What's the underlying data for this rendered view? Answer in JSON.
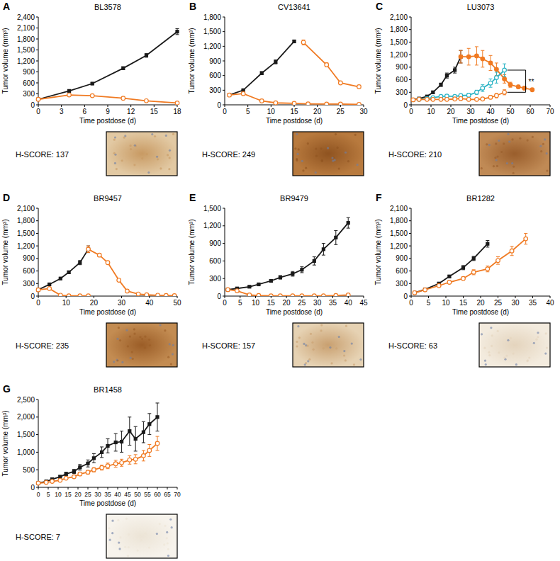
{
  "chart_data": [
    {
      "type": "line",
      "panel_label": "A",
      "title": "BL3578",
      "x_label": "Time postdose (d)",
      "y_label": "Tumor volume (mm³)",
      "xlim": [
        0,
        18
      ],
      "xticks": [
        0,
        3,
        6,
        9,
        12,
        15,
        18
      ],
      "ylim": [
        0,
        2400
      ],
      "yticks": [
        0,
        300,
        600,
        900,
        {
          "value": 1200,
          "label": "1,200"
        },
        {
          "value": 1500,
          "label": "1,500"
        },
        {
          "value": 1800,
          "label": "1,800"
        },
        {
          "value": 2100,
          "label": "2,100"
        },
        {
          "value": 2400,
          "label": "2,400"
        }
      ],
      "series": [
        {
          "color": "#1a1a1a",
          "marker": "square",
          "line_style": "solid",
          "x": [
            0,
            4,
            7,
            11,
            14,
            18
          ],
          "values": [
            150,
            380,
            580,
            1000,
            1350,
            2000
          ],
          "errors": [
            10,
            20,
            25,
            40,
            50,
            80
          ]
        },
        {
          "color": "#f07a22",
          "marker": "circle-open",
          "line_style": "solid",
          "x": [
            0,
            4,
            7,
            11,
            14,
            18
          ],
          "values": [
            150,
            270,
            250,
            180,
            110,
            50
          ],
          "errors": [
            10,
            15,
            15,
            15,
            10,
            10
          ]
        }
      ],
      "annotations": [
        {
          "text": "H-SCORE: 137"
        }
      ]
    },
    {
      "type": "line",
      "panel_label": "B",
      "title": "CV13641",
      "x_label": "Time postdose (d)",
      "y_label": "Tumor volume (mm³)",
      "xlim": [
        0,
        30
      ],
      "xticks": [
        0,
        5,
        10,
        15,
        20,
        25,
        30
      ],
      "ylim": [
        0,
        1800
      ],
      "yticks": [
        0,
        300,
        600,
        900,
        {
          "value": 1200,
          "label": "1,200"
        },
        {
          "value": 1500,
          "label": "1,500"
        },
        {
          "value": 1800,
          "label": "1,800"
        }
      ],
      "series": [
        {
          "color": "#1a1a1a",
          "marker": "square",
          "line_style": "solid",
          "x": [
            1,
            4,
            8,
            11,
            15
          ],
          "values": [
            200,
            300,
            650,
            880,
            1300
          ],
          "errors": [
            10,
            15,
            30,
            40,
            20
          ]
        },
        {
          "color": "#f07a22",
          "marker": "circle-open",
          "line_style": "solid",
          "x": [
            1,
            4,
            8,
            11,
            15,
            18,
            22,
            25,
            29
          ],
          "values": [
            200,
            230,
            80,
            40,
            30,
            20,
            15,
            15,
            10
          ],
          "errors": [
            10,
            15,
            10,
            5,
            5,
            5,
            5,
            5,
            5
          ]
        },
        {
          "color": "#f07a22",
          "marker": "circle-open",
          "line_style": "solid",
          "x": [
            17,
            22,
            25,
            29
          ],
          "values": [
            1280,
            820,
            450,
            370
          ],
          "errors": [
            50,
            40,
            30,
            25
          ]
        }
      ],
      "annotations": [
        {
          "text": "H-SCORE: 249"
        }
      ]
    },
    {
      "type": "line",
      "panel_label": "C",
      "title": "LU3073",
      "x_label": "Time postdose (d)",
      "y_label": "Tumor volume (mm³)",
      "xlim": [
        0,
        70
      ],
      "xticks": [
        0,
        10,
        20,
        30,
        40,
        50,
        60,
        70
      ],
      "ylim": [
        0,
        2100
      ],
      "yticks": [
        0,
        300,
        600,
        900,
        {
          "value": 1200,
          "label": "1,200"
        },
        {
          "value": 1500,
          "label": "1,500"
        },
        {
          "value": 1800,
          "label": "1,800"
        },
        {
          "value": 2100,
          "label": "2,100"
        }
      ],
      "series": [
        {
          "color": "#1a1a1a",
          "marker": "square",
          "line_style": "solid",
          "x": [
            1,
            4,
            8,
            11,
            15,
            18,
            22,
            25
          ],
          "values": [
            120,
            150,
            200,
            300,
            480,
            700,
            830,
            1150
          ],
          "errors": [
            10,
            10,
            20,
            30,
            40,
            60,
            70,
            150
          ]
        },
        {
          "color": "#f07a22",
          "marker": "circle",
          "line_style": "solid",
          "x": [
            25,
            29,
            33,
            36,
            40,
            43,
            47,
            50,
            54,
            57,
            61
          ],
          "values": [
            1150,
            1150,
            1170,
            1100,
            1000,
            850,
            620,
            480,
            430,
            400,
            360
          ],
          "errors": [
            150,
            200,
            220,
            200,
            180,
            150,
            100,
            60,
            40,
            30,
            30
          ]
        },
        {
          "color": "#2ab3c4",
          "marker": "circle-open",
          "line_style": "solid",
          "x": [
            4,
            8,
            11,
            15,
            18,
            22,
            25,
            29,
            33,
            36,
            40,
            43,
            47
          ],
          "values": [
            130,
            150,
            170,
            200,
            210,
            200,
            220,
            230,
            300,
            400,
            520,
            650,
            830
          ],
          "errors": [
            10,
            15,
            15,
            20,
            25,
            25,
            30,
            40,
            50,
            80,
            100,
            130,
            150
          ]
        },
        {
          "color": "#f07a22",
          "marker": "circle-open",
          "line_style": "solid",
          "x": [
            1,
            4,
            8,
            11,
            15,
            18,
            22,
            25,
            29,
            33,
            36,
            40,
            43,
            47
          ],
          "values": [
            120,
            130,
            130,
            130,
            130,
            130,
            140,
            150,
            130,
            130,
            140,
            180,
            220,
            300
          ],
          "errors": [
            10,
            10,
            10,
            10,
            10,
            10,
            15,
            20,
            20,
            20,
            30,
            40,
            50,
            60
          ]
        }
      ],
      "annotations": [
        {
          "text": "H-SCORE: 210"
        },
        {
          "text": "**",
          "series": [
            2,
            3
          ]
        }
      ]
    },
    {
      "type": "line",
      "panel_label": "D",
      "title": "BR9457",
      "x_label": "Time postdose (d)",
      "y_label": "Tumor volume (mm³)",
      "xlim": [
        0,
        50
      ],
      "xticks": [
        0,
        10,
        20,
        30,
        40,
        50
      ],
      "ylim": [
        0,
        2100
      ],
      "yticks": [
        0,
        300,
        600,
        900,
        {
          "value": 1200,
          "label": "1,200"
        },
        {
          "value": 1500,
          "label": "1,500"
        },
        {
          "value": 1800,
          "label": "1,800"
        },
        {
          "value": 2100,
          "label": "2,100"
        }
      ],
      "series": [
        {
          "color": "#1a1a1a",
          "marker": "square",
          "line_style": "solid",
          "x": [
            0,
            4,
            8,
            11,
            15,
            18
          ],
          "values": [
            150,
            280,
            420,
            570,
            800,
            1120
          ],
          "errors": [
            10,
            15,
            20,
            30,
            50,
            80
          ]
        },
        {
          "color": "#f07a22",
          "marker": "circle-open",
          "line_style": "solid",
          "x": [
            0,
            4,
            8,
            11,
            15,
            18
          ],
          "values": [
            150,
            180,
            20,
            5,
            5,
            5
          ],
          "errors": [
            10,
            20,
            5,
            2,
            2,
            2
          ]
        },
        {
          "color": "#f07a22",
          "marker": "circle-open",
          "line_style": "solid",
          "x": [
            18,
            22,
            25,
            29,
            32,
            36,
            39,
            43,
            46,
            49
          ],
          "values": [
            1120,
            980,
            800,
            380,
            120,
            50,
            30,
            20,
            15,
            10
          ],
          "errors": [
            80,
            40,
            30,
            30,
            20,
            10,
            5,
            5,
            5,
            5
          ]
        }
      ],
      "annotations": [
        {
          "text": "H-SCORE: 235"
        }
      ]
    },
    {
      "type": "line",
      "panel_label": "E",
      "title": "BR9479",
      "x_label": "Time postdose (d)",
      "y_label": "Tumor volume (mm³)",
      "xlim": [
        0,
        45
      ],
      "xticks": [
        0,
        5,
        10,
        15,
        20,
        25,
        30,
        35,
        40,
        45
      ],
      "ylim": [
        0,
        1500
      ],
      "yticks": [
        0,
        300,
        600,
        900,
        {
          "value": 1200,
          "label": "1,200"
        },
        {
          "value": 1500,
          "label": "1,500"
        }
      ],
      "series": [
        {
          "color": "#1a1a1a",
          "marker": "square",
          "line_style": "solid",
          "x": [
            1,
            4,
            8,
            11,
            15,
            18,
            22,
            25,
            29,
            32,
            36,
            40
          ],
          "values": [
            110,
            130,
            160,
            200,
            260,
            320,
            380,
            450,
            600,
            800,
            1000,
            1250
          ],
          "errors": [
            5,
            10,
            10,
            15,
            20,
            30,
            40,
            50,
            70,
            100,
            120,
            90
          ]
        },
        {
          "color": "#f07a22",
          "marker": "circle-open",
          "line_style": "solid",
          "x": [
            1,
            4,
            8,
            11,
            15,
            18,
            22,
            25,
            29,
            32,
            36,
            40
          ],
          "values": [
            110,
            90,
            20,
            10,
            5,
            5,
            5,
            5,
            5,
            5,
            10,
            20
          ],
          "errors": [
            5,
            10,
            5,
            2,
            2,
            2,
            2,
            2,
            2,
            2,
            5,
            10
          ]
        }
      ],
      "annotations": [
        {
          "text": "H-SCORE: 157"
        }
      ]
    },
    {
      "type": "line",
      "panel_label": "F",
      "title": "BR1282",
      "x_label": "Time postdose (d)",
      "y_label": "Tumor volume (mm³)",
      "xlim": [
        0,
        40
      ],
      "xticks": [
        0,
        5,
        10,
        15,
        20,
        25,
        30,
        35,
        40
      ],
      "ylim": [
        0,
        2100
      ],
      "yticks": [
        0,
        300,
        600,
        900,
        {
          "value": 1200,
          "label": "1,200"
        },
        {
          "value": 1500,
          "label": "1,500"
        },
        {
          "value": 1800,
          "label": "1,800"
        },
        {
          "value": 2100,
          "label": "2,100"
        }
      ],
      "series": [
        {
          "color": "#1a1a1a",
          "marker": "square",
          "line_style": "solid",
          "x": [
            1,
            4,
            8,
            11,
            15,
            18,
            22
          ],
          "values": [
            80,
            160,
            300,
            470,
            680,
            900,
            1250
          ],
          "errors": [
            5,
            10,
            20,
            30,
            50,
            50,
            80
          ]
        },
        {
          "color": "#f07a22",
          "marker": "circle-open",
          "line_style": "solid",
          "x": [
            1,
            4,
            8,
            11,
            15,
            18,
            22,
            25,
            29,
            33
          ],
          "values": [
            80,
            150,
            250,
            330,
            420,
            570,
            650,
            850,
            1080,
            1370
          ],
          "errors": [
            5,
            10,
            20,
            30,
            40,
            60,
            70,
            90,
            110,
            130
          ]
        }
      ],
      "annotations": [
        {
          "text": "H-SCORE: 63"
        }
      ]
    },
    {
      "type": "line",
      "panel_label": "G",
      "title": "BR1458",
      "x_label": "Time postdose (d)",
      "y_label": "Tumor volume (mm³)",
      "xlim": [
        0,
        70
      ],
      "xticks": [
        0,
        5,
        10,
        15,
        20,
        25,
        30,
        35,
        40,
        45,
        50,
        55,
        60,
        65,
        70
      ],
      "ylim": [
        0,
        2500
      ],
      "yticks": [
        0,
        500,
        {
          "value": 1000,
          "label": "1,000"
        },
        {
          "value": 1500,
          "label": "1,500"
        },
        {
          "value": 2000,
          "label": "2,000"
        },
        {
          "value": 2500,
          "label": "2,500"
        }
      ],
      "series": [
        {
          "color": "#1a1a1a",
          "marker": "square",
          "line_style": "solid",
          "x": [
            0,
            4,
            7,
            11,
            14,
            18,
            21,
            25,
            28,
            32,
            35,
            39,
            42,
            46,
            49,
            53,
            56,
            60
          ],
          "values": [
            120,
            170,
            230,
            300,
            380,
            450,
            570,
            680,
            830,
            1000,
            1180,
            1280,
            1300,
            1600,
            1380,
            1570,
            1800,
            2000
          ],
          "errors": [
            10,
            20,
            30,
            40,
            50,
            60,
            80,
            100,
            130,
            150,
            200,
            250,
            300,
            400,
            350,
            300,
            300,
            400
          ]
        },
        {
          "color": "#f07a22",
          "marker": "circle-open",
          "line_style": "solid",
          "x": [
            0,
            4,
            7,
            11,
            14,
            18,
            21,
            25,
            28,
            32,
            35,
            39,
            42,
            46,
            49,
            53,
            56,
            60
          ],
          "values": [
            120,
            140,
            170,
            200,
            260,
            300,
            380,
            430,
            500,
            560,
            610,
            670,
            700,
            780,
            800,
            900,
            1050,
            1250
          ],
          "errors": [
            10,
            10,
            15,
            20,
            25,
            30,
            40,
            50,
            60,
            70,
            80,
            100,
            100,
            120,
            130,
            150,
            170,
            200
          ]
        }
      ],
      "annotations": [
        {
          "text": "H-SCORE: 7"
        }
      ]
    }
  ]
}
